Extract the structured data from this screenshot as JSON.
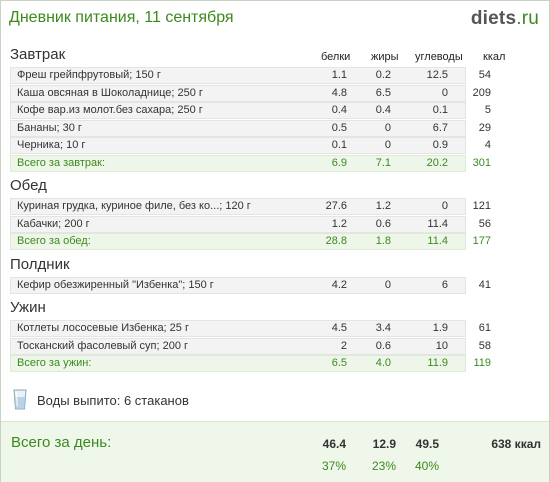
{
  "header": {
    "title": "Дневник питания, 11 сентября",
    "logo_main": "diets",
    "logo_tld": ".ru"
  },
  "columns": [
    "белки",
    "жиры",
    "углеводы",
    "ккал"
  ],
  "meals": [
    {
      "title": "Завтрак",
      "items": [
        [
          "Фреш грейпфрутовый; 150 г",
          "1.1",
          "0.2",
          "12.5",
          "54"
        ],
        [
          "Каша овсяная в Шоколаднице; 250 г",
          "4.8",
          "6.5",
          "0",
          "209"
        ],
        [
          "Кофе вар.из молот.без сахара; 250 г",
          "0.4",
          "0.4",
          "0.1",
          "5"
        ],
        [
          "Бананы; 30 г",
          "0.5",
          "0",
          "6.7",
          "29"
        ],
        [
          "Черника; 10 г",
          "0.1",
          "0",
          "0.9",
          "4"
        ]
      ],
      "total": [
        "Всего за завтрак:",
        "6.9",
        "7.1",
        "20.2",
        "301"
      ]
    },
    {
      "title": "Обед",
      "items": [
        [
          "Куриная грудка, куриное филе, без ко...; 120 г",
          "27.6",
          "1.2",
          "0",
          "121"
        ],
        [
          "Кабачки; 200 г",
          "1.2",
          "0.6",
          "11.4",
          "56"
        ]
      ],
      "total": [
        "Всего за обед:",
        "28.8",
        "1.8",
        "11.4",
        "177"
      ]
    },
    {
      "title": "Полдник",
      "items": [
        [
          "Кефир обезжиренный \"Избенка\"; 150 г",
          "4.2",
          "0",
          "6",
          "41"
        ]
      ],
      "total": null
    },
    {
      "title": "Ужин",
      "items": [
        [
          "Котлеты лососевые Избенка; 25 г",
          "4.5",
          "3.4",
          "1.9",
          "61"
        ],
        [
          "Тосканский фасолевый суп; 200 г",
          "2",
          "0.6",
          "10",
          "58"
        ]
      ],
      "total": [
        "Всего за ужин:",
        "6.5",
        "4.0",
        "11.9",
        "119"
      ]
    }
  ],
  "water": {
    "label": "Воды выпито: 6 стаканов",
    "icon": "water-glass-icon"
  },
  "day_total": {
    "title": "Всего за день:",
    "values": [
      "46.4",
      "12.9",
      "49.5",
      "638 ккал"
    ],
    "percents": [
      "37%",
      "23%",
      "40%"
    ]
  },
  "colors": {
    "accent": "#3c8a1e",
    "row_bg": "#f3f3f3",
    "total_bg": "#edf6e8",
    "day_bg": "#eef7e9"
  }
}
